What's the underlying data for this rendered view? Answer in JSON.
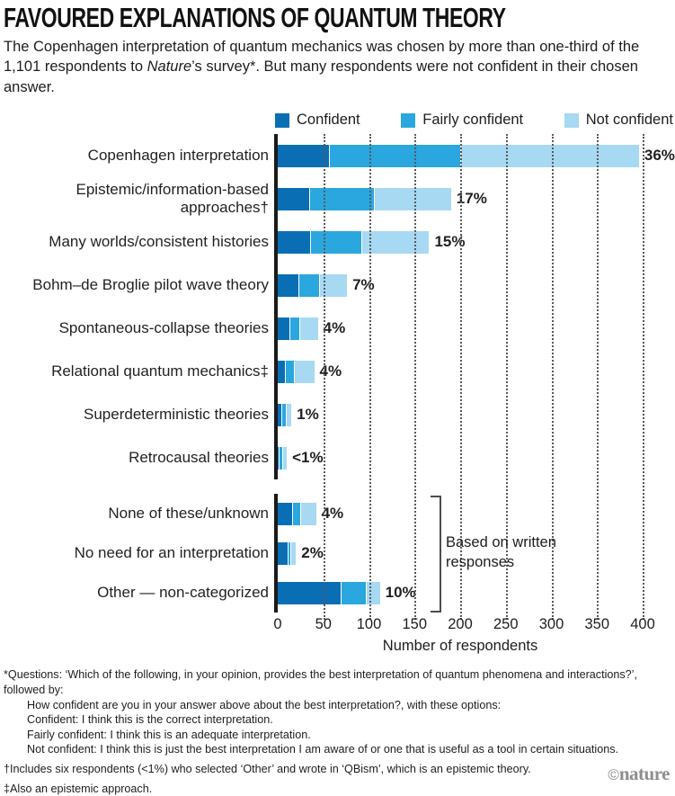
{
  "header": {
    "title": "FAVOURED EXPLANATIONS OF QUANTUM THEORY",
    "subtitle_pre": "The Copenhagen interpretation of quantum mechanics was chosen by more than one-third of the 1,101 respondents to ",
    "subtitle_italic": "Nature",
    "subtitle_post": "’s survey*. But many respondents were not confident in their chosen answer."
  },
  "chart_data": {
    "type": "bar",
    "orientation": "horizontal",
    "stacked": true,
    "title": "Favoured explanations of quantum theory",
    "xlabel": "Number of respondents",
    "xlim": [
      0,
      400
    ],
    "xticks": [
      0,
      50,
      100,
      150,
      200,
      250,
      300,
      350,
      400
    ],
    "grid": "vertical-dotted",
    "legend_position": "top",
    "series": [
      {
        "name": "Confident",
        "color": "#0a6eb4"
      },
      {
        "name": "Fairly confident",
        "color": "#2aa7de"
      },
      {
        "name": "Not confident",
        "color": "#a7d9f2"
      }
    ],
    "groups": [
      {
        "name": "survey-options",
        "bracket_label": null,
        "rows": [
          {
            "label": "Copenhagen interpretation",
            "pct_label": "36%",
            "values": [
              56,
              143,
              195
            ]
          },
          {
            "label": "Epistemic/information-based approaches†",
            "pct_label": "17%",
            "values": [
              34,
              70,
              84
            ]
          },
          {
            "label": "Many worlds/consistent histories",
            "pct_label": "15%",
            "values": [
              35,
              56,
              73
            ]
          },
          {
            "label": "Bohm–de Broglie pilot wave theory",
            "pct_label": "7%",
            "values": [
              23,
              21,
              30
            ]
          },
          {
            "label": "Spontaneous-collapse theories",
            "pct_label": "4%",
            "values": [
              13,
              10,
              19
            ]
          },
          {
            "label": "Relational quantum mechanics‡",
            "pct_label": "4%",
            "values": [
              8,
              9,
              21
            ]
          },
          {
            "label": "Superdeterministic theories",
            "pct_label": "1%",
            "values": [
              4,
              4,
              5
            ]
          },
          {
            "label": "Retrocausal theories",
            "pct_label": "<1%",
            "values": [
              1,
              3,
              4
            ]
          }
        ]
      },
      {
        "name": "written-responses",
        "bracket_label": "Based on written responses",
        "rows": [
          {
            "label": "None of these/unknown",
            "pct_label": "4%",
            "values": [
              16,
              8,
              16
            ]
          },
          {
            "label": "No need for an interpretation",
            "pct_label": "2%",
            "values": [
              11,
              2,
              5
            ]
          },
          {
            "label": "Other — non-categorized",
            "pct_label": "10%",
            "values": [
              69,
              27,
              14
            ]
          }
        ]
      }
    ]
  },
  "footnotes": [
    {
      "indent": false,
      "spaced": false,
      "text": "*Questions: ‘Which of the following, in your opinion, provides the best interpretation of quantum phenomena and interactions?’, followed by:"
    },
    {
      "indent": true,
      "spaced": false,
      "text": "How confident are you in your answer above about the best interpretation?, with these options:"
    },
    {
      "indent": true,
      "spaced": false,
      "text": "Confident: I think this is the correct interpretation."
    },
    {
      "indent": true,
      "spaced": false,
      "text": "Fairly confident: I think this is an adequate interpretation."
    },
    {
      "indent": true,
      "spaced": false,
      "text": "Not confident: I think this is just the best interpretation I am aware of or one that is useful as a tool in certain situations."
    },
    {
      "indent": false,
      "spaced": true,
      "text": "†Includes six respondents (<1%) who selected ‘Other’ and wrote in ‘QBism’, which is an epistemic theory."
    },
    {
      "indent": false,
      "spaced": true,
      "text": "‡Also an epistemic approach."
    }
  ],
  "logo": {
    "symbol": "©",
    "text": "nature"
  }
}
